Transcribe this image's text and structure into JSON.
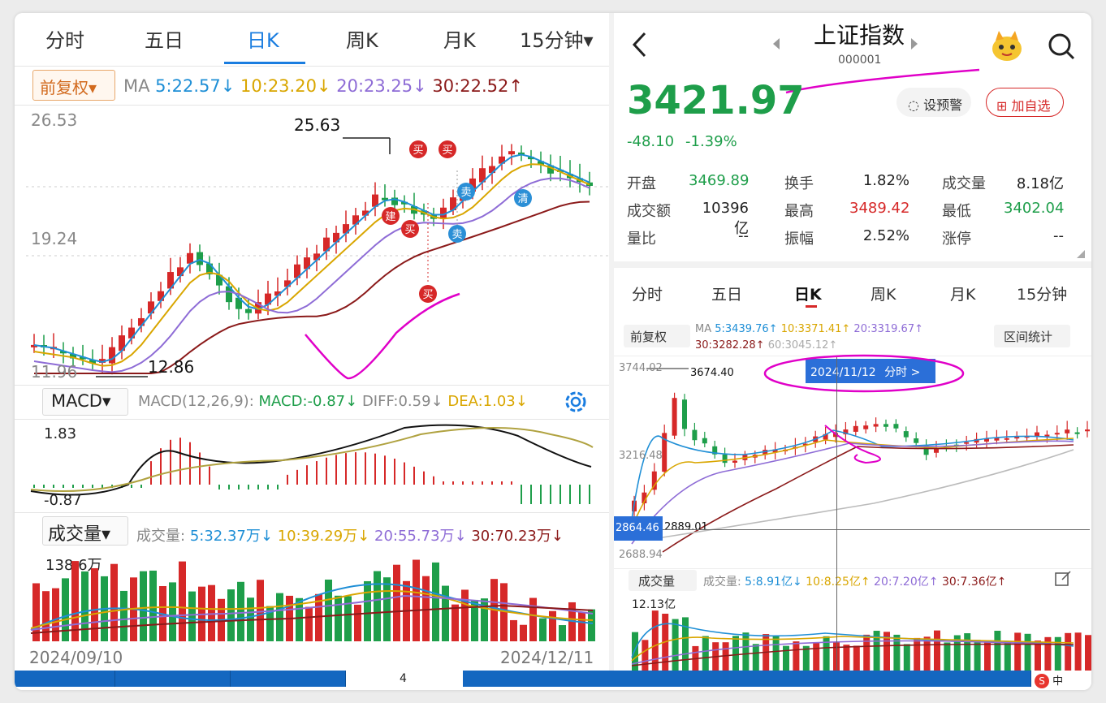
{
  "colors": {
    "up": "#d62828",
    "down": "#1e9e4a",
    "accent": "#1a7de0",
    "ma5": "#1f8fd6",
    "ma10": "#d9a600",
    "ma20": "#8e6cd6",
    "ma30": "#8b1a1a"
  },
  "left": {
    "tabs": [
      "分时",
      "五日",
      "日K",
      "周K",
      "月K",
      "15分钟▾"
    ],
    "active_tab": "日K",
    "adjust_btn": "前复权▾",
    "ma_label": "MA",
    "ma5": "5:22.57↓",
    "ma10": "10:23.20↓",
    "ma20": "20:23.25↓",
    "ma30": "30:22.52↑",
    "price_axis": [
      "26.53",
      "19.24",
      "11.96"
    ],
    "high_mark": "25.63",
    "low_mark": "12.86",
    "signals": [
      "买",
      "买",
      "卖",
      "建",
      "买",
      "卖",
      "清",
      "买"
    ],
    "macd_btn": "MACD▾",
    "macd_params": "MACD(12,26,9):",
    "macd_val": "MACD:-0.87↓",
    "diff_val": "DIFF:0.59↓",
    "dea_val": "DEA:1.03↓",
    "macd_axis": [
      "1.83",
      "-0.87"
    ],
    "settings_icon": "gear-icon",
    "vol_btn": "成交量▾",
    "vol_label": "成交量:",
    "vol5": "5:32.37万↓",
    "vol10": "10:39.29万↓",
    "vol20": "20:55.73万↓",
    "vol30": "30:70.23万↓",
    "vol_axis": "138.6万",
    "date_start": "2024/09/10",
    "date_end": "2024/12/11"
  },
  "right": {
    "back_icon": "back-arrow-icon",
    "title": "上证指数",
    "code": "000001",
    "mascot_icon": "mascot-icon",
    "search_icon": "search-icon",
    "price": "3421.97",
    "change": "-48.10",
    "change_pct": "-1.39%",
    "alert_btn": "设预警",
    "watch_btn": "加自选",
    "quotes": [
      {
        "label": "开盘",
        "value": "3469.89",
        "color": "down"
      },
      {
        "label": "换手",
        "value": "1.82%",
        "color": "neutral"
      },
      {
        "label": "成交量",
        "value": "8.18亿",
        "color": "neutral"
      },
      {
        "label": "成交额",
        "value": "10396亿",
        "color": "neutral"
      },
      {
        "label": "最高",
        "value": "3489.42",
        "color": "up"
      },
      {
        "label": "最低",
        "value": "3402.04",
        "color": "down"
      },
      {
        "label": "量比",
        "value": "--",
        "color": "neutral"
      },
      {
        "label": "振幅",
        "value": "2.52%",
        "color": "neutral"
      },
      {
        "label": "涨停",
        "value": "--",
        "color": "neutral"
      }
    ],
    "tabs": [
      "分时",
      "五日",
      "日K",
      "周K",
      "月K",
      "15分钟"
    ],
    "active_tab": "日K",
    "adjust_btn": "前复权",
    "ma_label": "MA",
    "ma5": "5:3439.76↑",
    "ma10": "10:3371.41↑",
    "ma20": "20:3319.67↑",
    "ma30": "30:3282.28↑",
    "ma60": "60:3045.12↑",
    "range_btn": "区间统计",
    "axis_top": "3744.02",
    "axis_mid": "3216.48",
    "axis_low": "2688.94",
    "high_mark": "3674.40",
    "low_box": "2864.46",
    "low_mark": "2889.01",
    "tooltip_date": "2024/11/12",
    "tooltip_btn": "分时 >",
    "vol_btn": "成交量",
    "vol_label": "成交量:",
    "vol5": "5:8.91亿↓",
    "vol10": "10:8.25亿↑",
    "vol20": "20:7.20亿↑",
    "vol30": "30:7.36亿↑",
    "vol_axis": "12.13亿"
  },
  "taskbar": {
    "page": "4",
    "ime": "中"
  }
}
